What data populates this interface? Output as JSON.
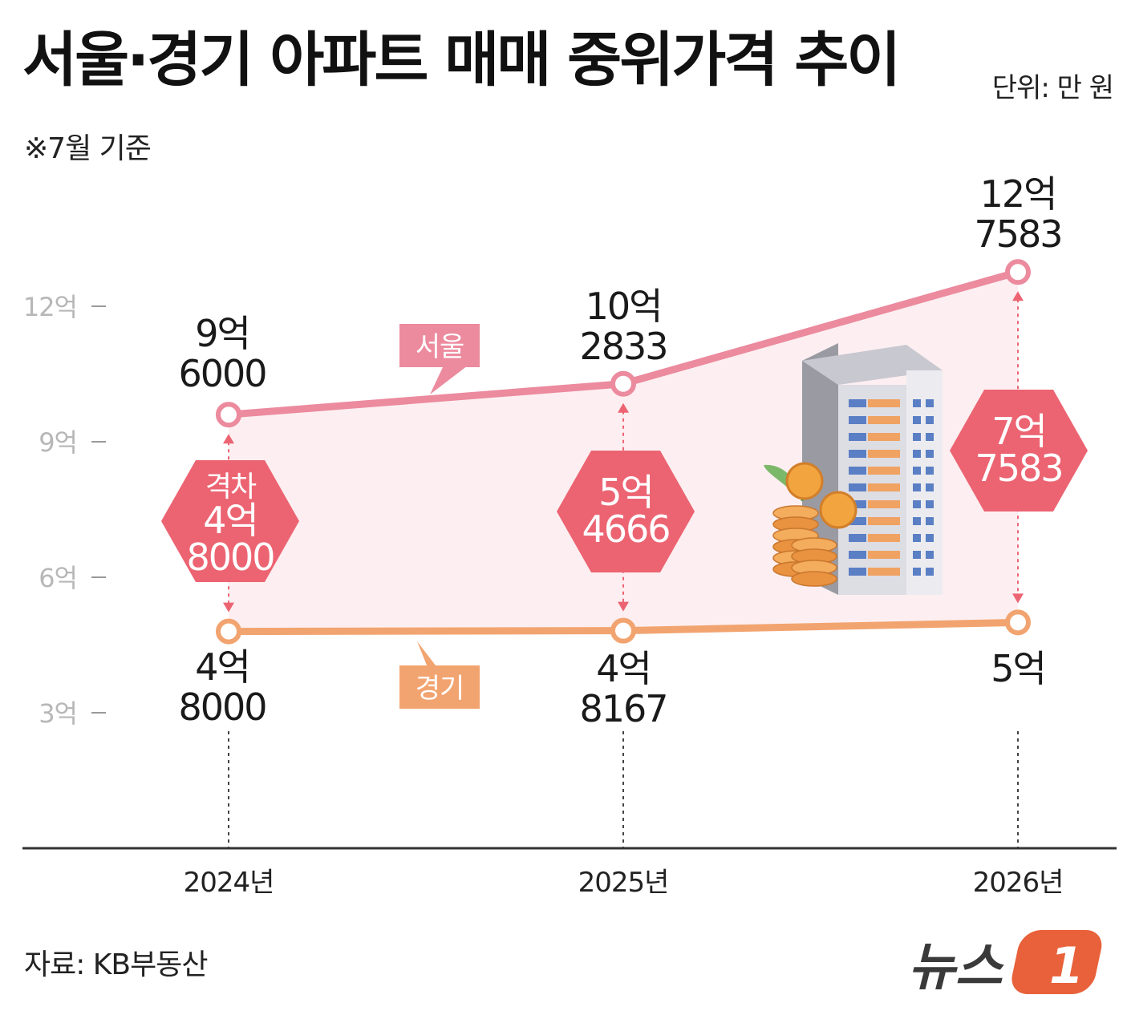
{
  "header": {
    "title": "서울·경기 아파트 매매 중위가격 추이",
    "unit": "단위: 만 원",
    "note": "※7월 기준"
  },
  "footer": {
    "source": "자료: KB부동산",
    "logo_text": "뉴스",
    "logo_number": "1"
  },
  "colors": {
    "seoul": "#ec8a9e",
    "gyeonggi": "#f2a470",
    "gap": "#ec6472",
    "fill": "#fdeff1"
  },
  "chart_data": {
    "type": "line",
    "categories": [
      "2024년",
      "2025년",
      "2026년"
    ],
    "y_ticks": [
      "12억",
      "9억",
      "6억",
      "3억"
    ],
    "ylim": [
      0,
      135000
    ],
    "series": [
      {
        "name": "서울",
        "values": [
          96000,
          102833,
          127583
        ],
        "labels": [
          [
            "9억",
            "6000"
          ],
          [
            "10억",
            "2833"
          ],
          [
            "12억",
            "7583"
          ]
        ]
      },
      {
        "name": "경기",
        "values": [
          48000,
          48167,
          50000
        ],
        "labels": [
          [
            "4억",
            "8000"
          ],
          [
            "4억",
            "8167"
          ],
          [
            "5억"
          ]
        ]
      }
    ],
    "gaps": [
      {
        "value": 48000,
        "lines": [
          "격차",
          "4억",
          "8000"
        ]
      },
      {
        "value": 54666,
        "lines": [
          "5억",
          "4666"
        ]
      },
      {
        "value": 77583,
        "lines": [
          "7억",
          "7583"
        ]
      }
    ]
  }
}
